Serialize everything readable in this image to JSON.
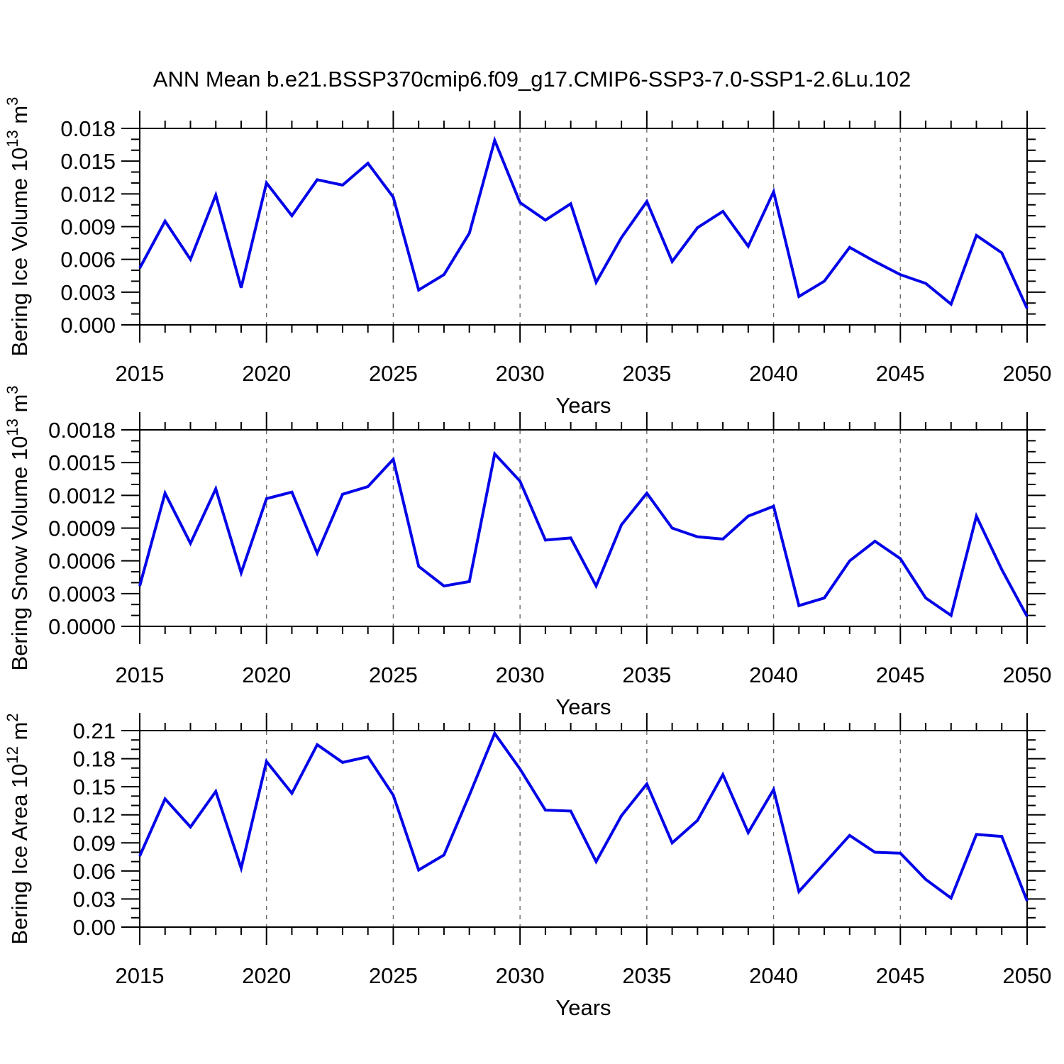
{
  "title": "ANN Mean b.e21.BSSP370cmip6.f09_g17.CMIP6-SSP3-7.0-SSP1-2.6Lu.102",
  "line_color": "#0404e8",
  "grid_color": "#6e6e6e",
  "axis_color": "#000000",
  "chart_data": [
    {
      "type": "line",
      "name": "bering-ice-volume",
      "ylabel": "Bering Ice Volume 10^13 m^3",
      "ylabel_rich": [
        {
          "t": "Bering Ice Volume 10"
        },
        {
          "t": "13",
          "sup": true
        },
        {
          "t": " m"
        },
        {
          "t": "3",
          "sup": true
        }
      ],
      "xlabel": "Years",
      "xlim": [
        2015,
        2050
      ],
      "ylim": [
        0,
        0.018
      ],
      "xtick_values": [
        2015,
        2020,
        2025,
        2030,
        2035,
        2040,
        2045,
        2050
      ],
      "xtick_labels": [
        "2015",
        "2020",
        "2025",
        "2030",
        "2035",
        "2040",
        "2045",
        "2050"
      ],
      "x_minor_step": 1,
      "grid_x": [
        2020,
        2025,
        2030,
        2035,
        2040,
        2045
      ],
      "ytick_values": [
        0,
        0.003,
        0.006,
        0.009,
        0.012,
        0.015,
        0.018
      ],
      "ytick_labels": [
        "0.000",
        "0.003",
        "0.006",
        "0.009",
        "0.012",
        "0.015",
        "0.018"
      ],
      "y_minor_step": 0.001,
      "x": [
        2015,
        2016,
        2017,
        2018,
        2019,
        2020,
        2021,
        2022,
        2023,
        2024,
        2025,
        2026,
        2027,
        2028,
        2029,
        2030,
        2031,
        2032,
        2033,
        2034,
        2035,
        2036,
        2037,
        2038,
        2039,
        2040,
        2041,
        2042,
        2043,
        2044,
        2045,
        2046,
        2047,
        2048,
        2049,
        2050
      ],
      "values": [
        0.0052,
        0.0095,
        0.006,
        0.0119,
        0.0034,
        0.013,
        0.01,
        0.0133,
        0.0128,
        0.0148,
        0.0117,
        0.0032,
        0.0046,
        0.0084,
        0.0169,
        0.0112,
        0.0096,
        0.0111,
        0.0039,
        0.008,
        0.0113,
        0.0058,
        0.0089,
        0.0104,
        0.0072,
        0.0122,
        0.0026,
        0.004,
        0.0071,
        0.0058,
        0.0046,
        0.0038,
        0.0019,
        0.0082,
        0.0066,
        0.0015
      ]
    },
    {
      "type": "line",
      "name": "bering-snow-volume",
      "ylabel": "Bering Snow Volume 10^13 m^3",
      "ylabel_rich": [
        {
          "t": "Bering Snow Volume 10"
        },
        {
          "t": "13",
          "sup": true
        },
        {
          "t": " m"
        },
        {
          "t": "3",
          "sup": true
        }
      ],
      "xlabel": "Years",
      "xlim": [
        2015,
        2050
      ],
      "ylim": [
        0,
        0.0018
      ],
      "xtick_values": [
        2015,
        2020,
        2025,
        2030,
        2035,
        2040,
        2045,
        2050
      ],
      "xtick_labels": [
        "2015",
        "2020",
        "2025",
        "2030",
        "2035",
        "2040",
        "2045",
        "2050"
      ],
      "x_minor_step": 1,
      "grid_x": [
        2020,
        2025,
        2030,
        2035,
        2040,
        2045
      ],
      "ytick_values": [
        0,
        0.0003,
        0.0006,
        0.0009,
        0.0012,
        0.0015,
        0.0018
      ],
      "ytick_labels": [
        "0.0000",
        "0.0003",
        "0.0006",
        "0.0009",
        "0.0012",
        "0.0015",
        "0.0018"
      ],
      "y_minor_step": 0.0001,
      "x": [
        2015,
        2016,
        2017,
        2018,
        2019,
        2020,
        2021,
        2022,
        2023,
        2024,
        2025,
        2026,
        2027,
        2028,
        2029,
        2030,
        2031,
        2032,
        2033,
        2034,
        2035,
        2036,
        2037,
        2038,
        2039,
        2040,
        2041,
        2042,
        2043,
        2044,
        2045,
        2046,
        2047,
        2048,
        2049,
        2050
      ],
      "values": [
        0.00037,
        0.00122,
        0.00076,
        0.00126,
        0.00049,
        0.00117,
        0.00123,
        0.00067,
        0.00121,
        0.00128,
        0.00153,
        0.00055,
        0.00037,
        0.00041,
        0.00158,
        0.00133,
        0.00079,
        0.00081,
        0.00037,
        0.00093,
        0.00122,
        0.0009,
        0.00082,
        0.0008,
        0.00101,
        0.0011,
        0.00019,
        0.00026,
        0.0006,
        0.00078,
        0.00062,
        0.00026,
        0.0001,
        0.00101,
        0.00052,
        9e-05
      ]
    },
    {
      "type": "line",
      "name": "bering-ice-area",
      "ylabel": "Bering Ice Area 10^12 m^2",
      "ylabel_rich": [
        {
          "t": "Bering Ice Area 10"
        },
        {
          "t": "12",
          "sup": true
        },
        {
          "t": " m"
        },
        {
          "t": "2",
          "sup": true
        }
      ],
      "xlabel": "Years",
      "xlim": [
        2015,
        2050
      ],
      "ylim": [
        0,
        0.21
      ],
      "xtick_values": [
        2015,
        2020,
        2025,
        2030,
        2035,
        2040,
        2045,
        2050
      ],
      "xtick_labels": [
        "2015",
        "2020",
        "2025",
        "2030",
        "2035",
        "2040",
        "2045",
        "2050"
      ],
      "x_minor_step": 1,
      "grid_x": [
        2020,
        2025,
        2030,
        2035,
        2040,
        2045
      ],
      "ytick_values": [
        0,
        0.03,
        0.06,
        0.09,
        0.12,
        0.15,
        0.18,
        0.21
      ],
      "ytick_labels": [
        "0.00",
        "0.03",
        "0.06",
        "0.09",
        "0.12",
        "0.15",
        "0.18",
        "0.21"
      ],
      "y_minor_step": 0.01,
      "x": [
        2015,
        2016,
        2017,
        2018,
        2019,
        2020,
        2021,
        2022,
        2023,
        2024,
        2025,
        2026,
        2027,
        2028,
        2029,
        2030,
        2031,
        2032,
        2033,
        2034,
        2035,
        2036,
        2037,
        2038,
        2039,
        2040,
        2041,
        2042,
        2043,
        2044,
        2045,
        2046,
        2047,
        2048,
        2049,
        2050
      ],
      "values": [
        0.076,
        0.137,
        0.107,
        0.145,
        0.063,
        0.177,
        0.143,
        0.195,
        0.176,
        0.182,
        0.141,
        0.061,
        0.077,
        0.141,
        0.207,
        0.169,
        0.125,
        0.124,
        0.07,
        0.119,
        0.153,
        0.09,
        0.114,
        0.163,
        0.101,
        0.147,
        0.038,
        0.068,
        0.098,
        0.08,
        0.079,
        0.051,
        0.031,
        0.099,
        0.097,
        0.028
      ]
    }
  ]
}
